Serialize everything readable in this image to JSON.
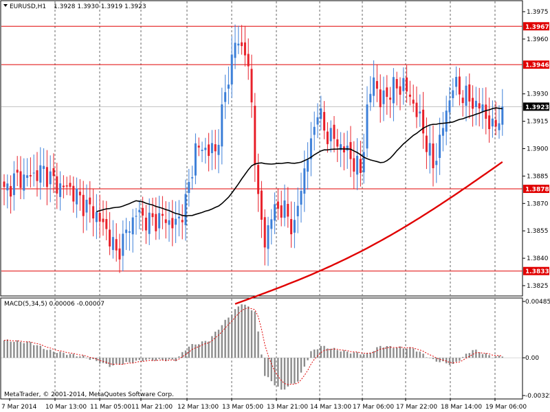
{
  "header": {
    "symbol": "EURUSD,H1",
    "ohlc": "1.3928 1.3930 1.3919 1.3923"
  },
  "macd_header": "MACD(5,34,5) 0.00006 -0.00007",
  "copyright": "MetaTrader, © 2001-2014, MetaQuotes Software Corp.",
  "current_price": "1.3923",
  "colors": {
    "bull": "#3c7fd8",
    "bear": "#e8202a",
    "level": "#e00000",
    "ma_fast": "#000000",
    "ma_slow": "#e00000",
    "macd_bar": "#8c8c8c",
    "macd_signal": "#e00000"
  },
  "chart_data": [
    {
      "type": "candlestick",
      "title": "EURUSD,H1",
      "ylim": [
        1.3815,
        1.3983
      ],
      "y_ticks": [
        "1.3975",
        "1.3960",
        "1.3930",
        "1.3915",
        "1.3900",
        "1.3885",
        "1.3870",
        "1.3855",
        "1.3840",
        "1.3825"
      ],
      "x_ticks": [
        "7 Mar 2014",
        "10 Mar 13:00",
        "11 Mar 05:00",
        "11 Mar 21:00",
        "12 Mar 13:00",
        "13 Mar 05:00",
        "13 Mar 21:00",
        "14 Mar 13:00",
        "17 Mar 06:00",
        "17 Mar 22:00",
        "18 Mar 14:00",
        "19 Mar 06:00"
      ],
      "levels": [
        "1.3967",
        "1.3946",
        "1.3878",
        "1.3833"
      ],
      "key_closes": [
        {
          "x": "7 Mar 2014",
          "close": 1.3876
        },
        {
          "x": "10 Mar 13:00",
          "close": 1.3883
        },
        {
          "x": "11 Mar 05:00",
          "close": 1.3845
        },
        {
          "x": "11 Mar 21:00",
          "close": 1.3862
        },
        {
          "x": "12 Mar 13:00",
          "close": 1.3902
        },
        {
          "x": "13 Mar 05:00",
          "close": 1.3958
        },
        {
          "x": "13 Mar 21:00",
          "close": 1.3868
        },
        {
          "x": "14 Mar 13:00",
          "close": 1.3903
        },
        {
          "x": "17 Mar 06:00",
          "close": 1.3893
        },
        {
          "x": "17 Mar 22:00",
          "close": 1.393
        },
        {
          "x": "18 Mar 14:00",
          "close": 1.3922
        },
        {
          "x": "19 Mar 06:00",
          "close": 1.3923
        }
      ],
      "series": [
        {
          "values": []
        },
        {
          "values": []
        }
      ]
    },
    {
      "type": "bar",
      "title": "MACD(5,34,5) 0.00006 -0.00007",
      "ylim": [
        -0.0033,
        0.0049
      ],
      "y_ticks": [
        "0.00485",
        "0.00",
        "-0.00325"
      ],
      "key_values": [
        {
          "x": "7 Mar 2014",
          "value": 0.0015
        },
        {
          "x": "11 Mar 05:00",
          "value": -0.0008
        },
        {
          "x": "12 Mar 13:00",
          "value": 0.0015
        },
        {
          "x": "13 Mar 05:00",
          "value": 0.0047
        },
        {
          "x": "13 Mar 21:00",
          "value": -0.0028
        },
        {
          "x": "14 Mar 13:00",
          "value": 0.001
        },
        {
          "x": "17 Mar 06:00",
          "value": 0.001
        },
        {
          "x": "18 Mar 14:00",
          "value": -0.0006
        },
        {
          "x": "19 Mar 06:00",
          "value": 0.0001
        }
      ]
    }
  ]
}
